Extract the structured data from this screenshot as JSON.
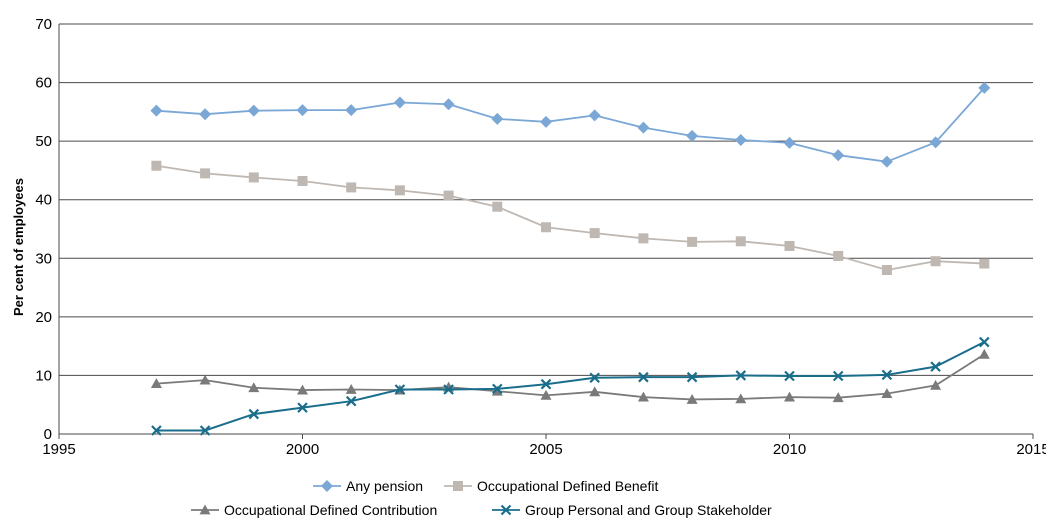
{
  "chart_data": {
    "type": "line",
    "title": "",
    "xlabel": "",
    "ylabel": "Per cent of employees",
    "xlim": [
      1995,
      2015
    ],
    "ylim": [
      0,
      70
    ],
    "x_ticks": [
      1995,
      2000,
      2005,
      2010,
      2015
    ],
    "y_ticks": [
      0,
      10,
      20,
      30,
      40,
      50,
      60,
      70
    ],
    "grid": "horizontal",
    "legend_position": "bottom",
    "x": [
      1997,
      1998,
      1999,
      2000,
      2001,
      2002,
      2003,
      2004,
      2005,
      2006,
      2007,
      2008,
      2009,
      2010,
      2011,
      2012,
      2013,
      2014
    ],
    "series": [
      {
        "name": "Any pension",
        "color": "#7ba7d6",
        "marker": "diamond",
        "values": [
          55.2,
          54.6,
          55.2,
          55.3,
          55.3,
          56.6,
          56.3,
          53.8,
          53.3,
          54.4,
          52.3,
          50.9,
          50.2,
          49.7,
          47.6,
          46.5,
          49.8,
          59.1
        ]
      },
      {
        "name": "Occupational Defined Benefit",
        "color": "#bfb8b2",
        "marker": "square",
        "values": [
          45.8,
          44.5,
          43.8,
          43.2,
          42.1,
          41.6,
          40.7,
          38.8,
          35.3,
          34.3,
          33.4,
          32.8,
          32.9,
          32.1,
          30.4,
          28.0,
          29.5,
          29.1
        ]
      },
      {
        "name": "Occupational Defined Contribution",
        "color": "#7a7a7a",
        "marker": "triangle",
        "values": [
          8.6,
          9.2,
          7.9,
          7.5,
          7.6,
          7.5,
          8.0,
          7.3,
          6.6,
          7.2,
          6.3,
          5.9,
          6.0,
          6.3,
          6.2,
          6.9,
          8.3,
          13.6
        ]
      },
      {
        "name": "Group Personal and Group Stakeholder",
        "color": "#1a6e8c",
        "marker": "x",
        "values": [
          0.6,
          0.6,
          3.4,
          4.5,
          5.6,
          7.6,
          7.6,
          7.7,
          8.5,
          9.6,
          9.7,
          9.7,
          10.0,
          9.9,
          9.9,
          10.1,
          11.5,
          15.7
        ]
      }
    ]
  }
}
